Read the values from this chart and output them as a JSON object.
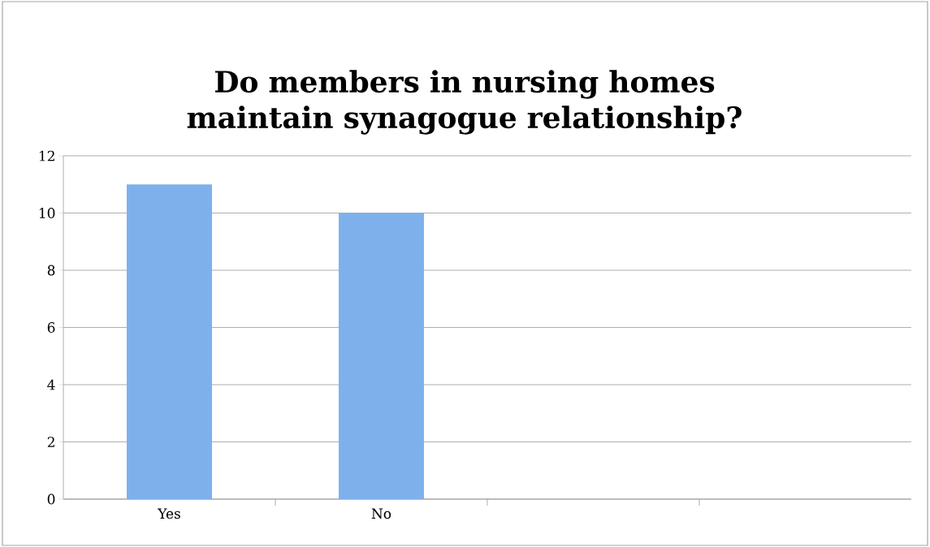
{
  "chart_data": {
    "type": "bar",
    "title": "Do members in nursing homes maintain synagogue relationship?",
    "categories": [
      "Yes",
      "No",
      null,
      null
    ],
    "values": [
      11,
      10,
      null,
      null
    ],
    "color": "#7eb1ec",
    "ylim": [
      0,
      12
    ],
    "yticks": [
      0,
      2,
      4,
      6,
      8,
      10,
      12
    ],
    "grid": "y"
  }
}
